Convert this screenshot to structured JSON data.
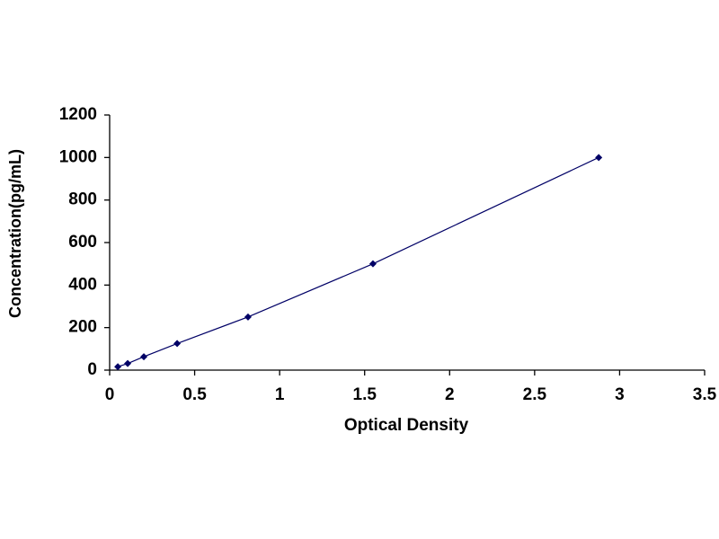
{
  "chart_data": {
    "type": "line",
    "x_label": "Optical Density",
    "y_label": "Concentration(pg/mL)",
    "x": [
      0.048,
      0.106,
      0.201,
      0.397,
      0.814,
      1.549,
      2.877
    ],
    "values": [
      16,
      31,
      63,
      125,
      250,
      500,
      1000
    ],
    "color": "#000066",
    "marker": "diamond",
    "xlim": [
      0,
      3.5
    ],
    "xticks": [
      0,
      0.5,
      1,
      1.5,
      2,
      2.5,
      3,
      3.5
    ],
    "ylim": [
      0,
      1200
    ],
    "yticks": [
      0,
      200,
      400,
      600,
      800,
      1000,
      1200
    ],
    "grid": false
  }
}
